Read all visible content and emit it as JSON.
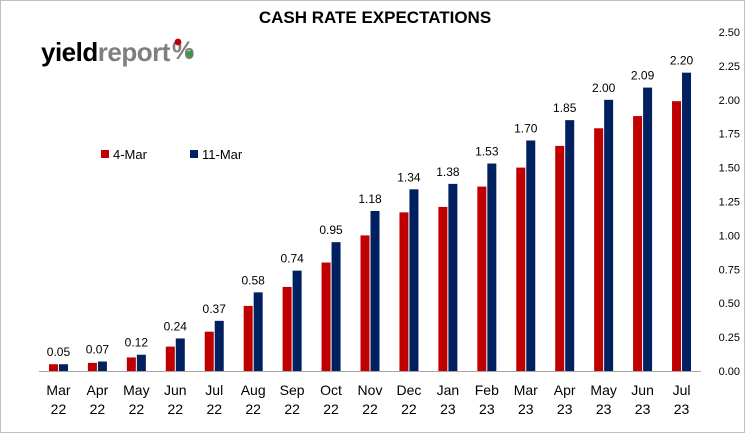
{
  "logo": {
    "part1": "yield",
    "part2": "report",
    "symbol": "%"
  },
  "chart_data": {
    "type": "bar",
    "title": "CASH RATE EXPECTATIONS",
    "categories": [
      [
        "Mar",
        "22"
      ],
      [
        "Apr",
        "22"
      ],
      [
        "May",
        "22"
      ],
      [
        "Jun",
        "22"
      ],
      [
        "Jul",
        "22"
      ],
      [
        "Aug",
        "22"
      ],
      [
        "Sep",
        "22"
      ],
      [
        "Oct",
        "22"
      ],
      [
        "Nov",
        "22"
      ],
      [
        "Dec",
        "22"
      ],
      [
        "Jan",
        "23"
      ],
      [
        "Feb",
        "23"
      ],
      [
        "Mar",
        "23"
      ],
      [
        "Apr",
        "23"
      ],
      [
        "May",
        "23"
      ],
      [
        "Jun",
        "23"
      ],
      [
        "Jul",
        "23"
      ]
    ],
    "series": [
      {
        "name": "4-Mar",
        "color": "#c00000",
        "values": [
          0.05,
          0.06,
          0.1,
          0.18,
          0.29,
          0.48,
          0.62,
          0.8,
          1.0,
          1.17,
          1.21,
          1.36,
          1.5,
          1.66,
          1.79,
          1.88,
          1.99
        ]
      },
      {
        "name": "11-Mar",
        "color": "#002060",
        "values": [
          0.05,
          0.07,
          0.12,
          0.24,
          0.37,
          0.58,
          0.74,
          0.95,
          1.18,
          1.34,
          1.38,
          1.53,
          1.7,
          1.85,
          2.0,
          2.09,
          2.2
        ],
        "data_labels": [
          "0.05",
          "0.07",
          "0.12",
          "0.24",
          "0.37",
          "0.58",
          "0.74",
          "0.95",
          "1.18",
          "1.34",
          "1.38",
          "1.53",
          "1.70",
          "1.85",
          "2.00",
          "2.09",
          "2.20"
        ]
      }
    ],
    "y_ticks": [
      "0.00",
      "0.25",
      "0.50",
      "0.75",
      "1.00",
      "1.25",
      "1.50",
      "1.75",
      "2.00",
      "2.25",
      "2.50"
    ],
    "ylim": [
      0,
      2.5
    ],
    "y_axis_side": "right",
    "legend": "upper-left",
    "grid": false
  }
}
